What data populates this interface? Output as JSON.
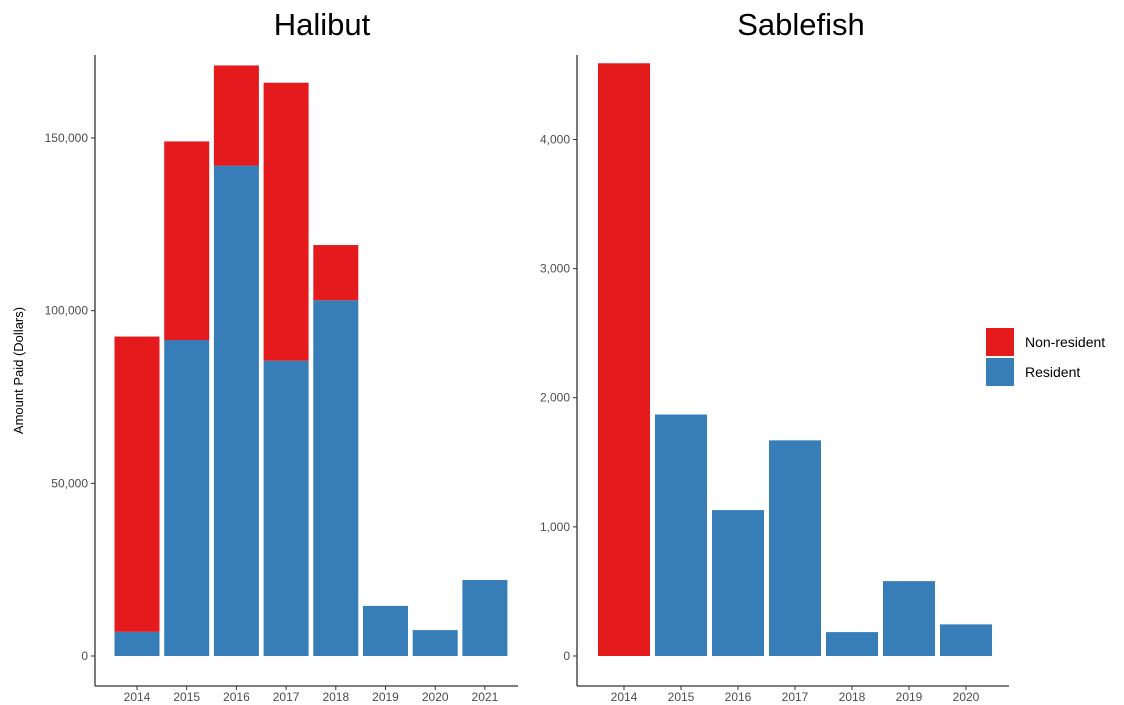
{
  "chart_data": [
    {
      "type": "bar",
      "stacked": true,
      "title": "Halibut",
      "xlabel": "",
      "ylabel": "Amount Paid (Dollars)",
      "categories": [
        "2014",
        "2015",
        "2016",
        "2017",
        "2018",
        "2019",
        "2020",
        "2021"
      ],
      "ylim": [
        0,
        172000
      ],
      "yticks": [
        0,
        50000,
        100000,
        150000
      ],
      "ytick_labels": [
        "0",
        "50,000",
        "100,000",
        "150,000"
      ],
      "series": [
        {
          "name": "Resident",
          "color": "#377eb8",
          "values": [
            7000,
            91500,
            142000,
            85500,
            103000,
            14500,
            7500,
            22000
          ]
        },
        {
          "name": "Non-resident",
          "color": "#e41a1c",
          "values": [
            85500,
            57500,
            29000,
            80500,
            16000,
            0,
            0,
            0
          ]
        }
      ],
      "grid": false
    },
    {
      "type": "bar",
      "stacked": true,
      "title": "Sablefish",
      "xlabel": "",
      "ylabel": "",
      "categories": [
        "2014",
        "2015",
        "2016",
        "2017",
        "2018",
        "2019",
        "2020"
      ],
      "ylim": [
        0,
        4600
      ],
      "yticks": [
        0,
        1000,
        2000,
        3000,
        4000
      ],
      "ytick_labels": [
        "0",
        "1,000",
        "2,000",
        "3,000",
        "4,000"
      ],
      "series": [
        {
          "name": "Resident",
          "color": "#377eb8",
          "values": [
            0,
            1870,
            1130,
            1670,
            185,
            580,
            245
          ]
        },
        {
          "name": "Non-resident",
          "color": "#e41a1c",
          "values": [
            4590,
            0,
            0,
            0,
            0,
            0,
            0
          ]
        }
      ],
      "grid": false
    }
  ],
  "legend": {
    "placement": "right",
    "items": [
      {
        "label": "Non-resident",
        "color": "#e41a1c"
      },
      {
        "label": "Resident",
        "color": "#377eb8"
      }
    ]
  }
}
